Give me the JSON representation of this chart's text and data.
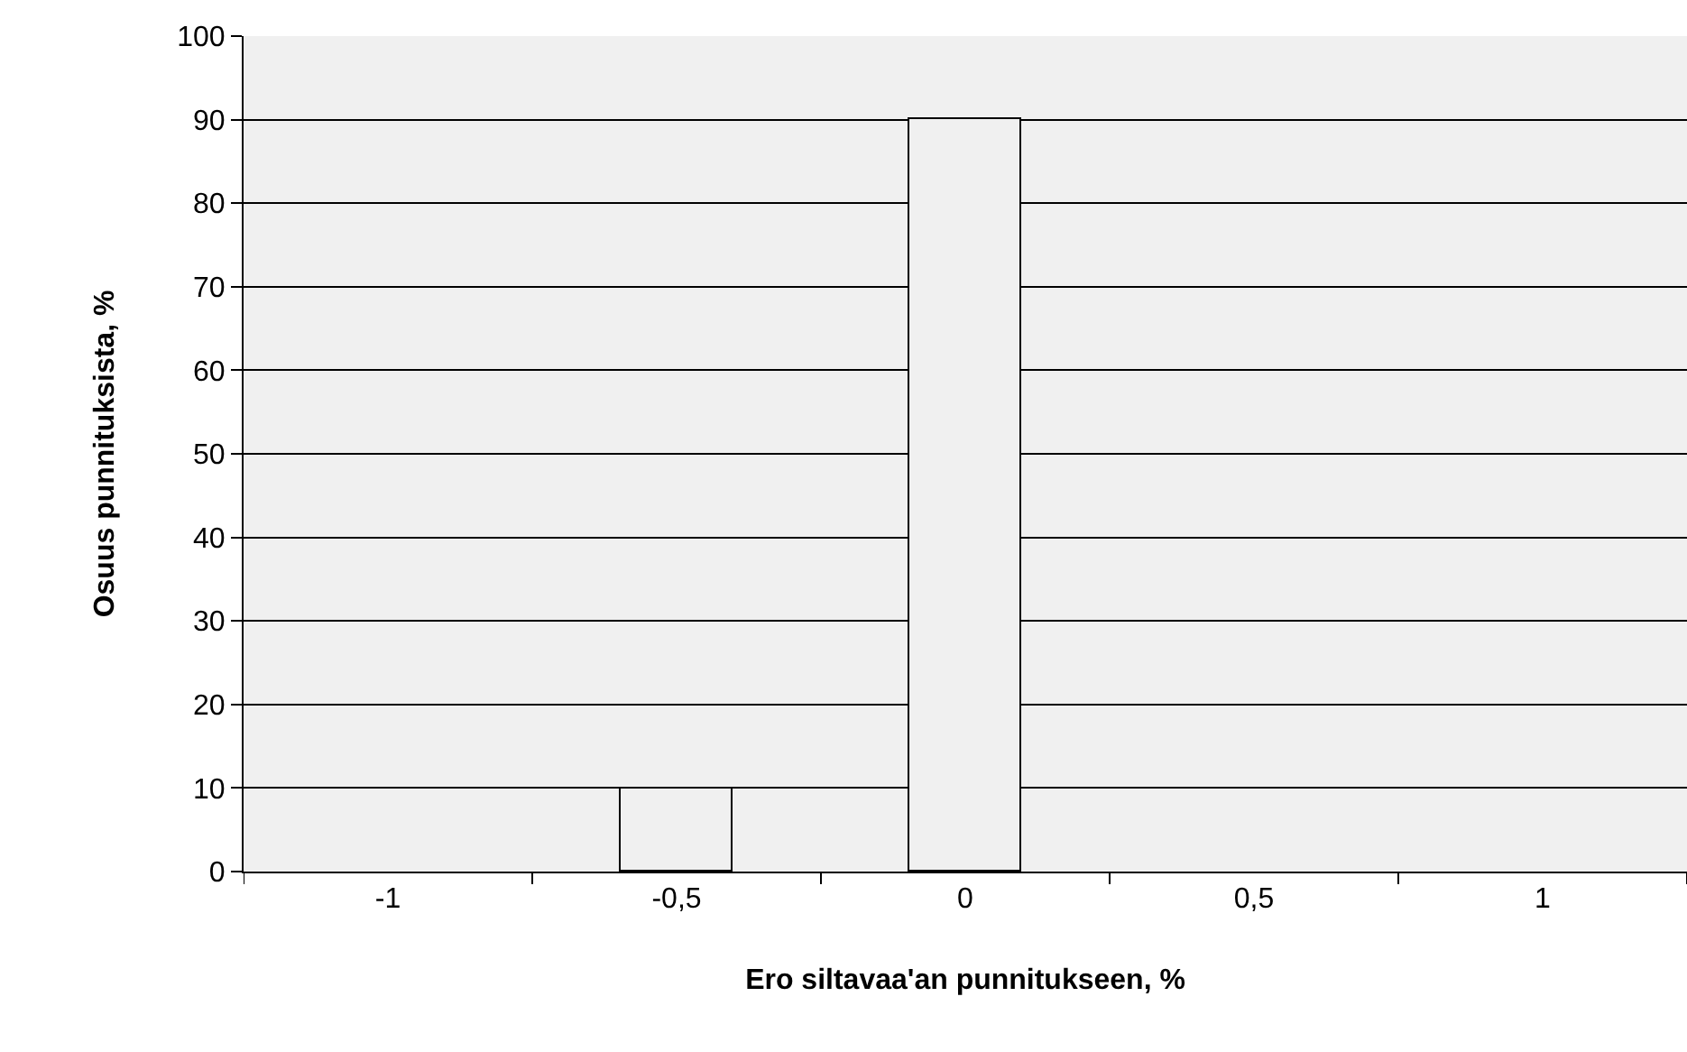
{
  "chart_data": {
    "type": "bar",
    "xlabel": "Ero siltavaa'an punnitukseen, %",
    "ylabel": "Osuus punnituksista, %",
    "categories": [
      "-1",
      "-0,5",
      "0",
      "0,5",
      "1"
    ],
    "values": [
      0,
      10,
      90,
      0,
      0
    ],
    "color": "#f0f0f0",
    "ylim": [
      0,
      100
    ],
    "yticks": [
      0,
      10,
      20,
      30,
      40,
      50,
      60,
      70,
      80,
      90,
      100
    ],
    "grid": "y"
  }
}
